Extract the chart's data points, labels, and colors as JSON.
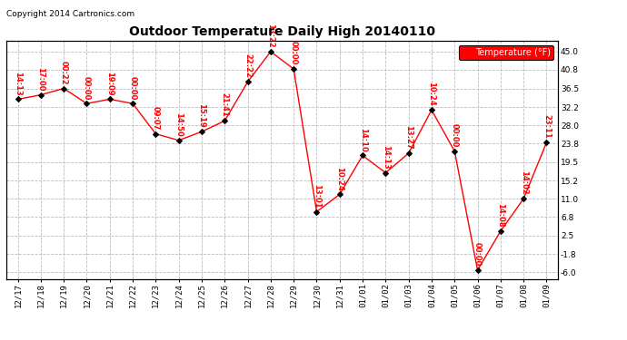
{
  "title": "Outdoor Temperature Daily High 20140110",
  "copyright": "Copyright 2014 Cartronics.com",
  "legend_label": "Temperature (°F)",
  "x_labels": [
    "12/17",
    "12/18",
    "12/19",
    "12/20",
    "12/21",
    "12/22",
    "12/23",
    "12/24",
    "12/25",
    "12/26",
    "12/27",
    "12/28",
    "12/29",
    "12/30",
    "12/31",
    "01/01",
    "01/02",
    "01/03",
    "01/04",
    "01/05",
    "01/06",
    "01/07",
    "01/08",
    "01/09"
  ],
  "temperatures": [
    34.0,
    35.0,
    36.5,
    33.0,
    34.0,
    33.0,
    26.0,
    24.5,
    26.5,
    29.0,
    38.0,
    45.0,
    41.0,
    8.0,
    12.0,
    21.0,
    17.0,
    21.5,
    31.5,
    22.0,
    -5.5,
    3.5,
    11.0,
    24.0
  ],
  "time_labels": [
    "14:13",
    "17:00",
    "00:22",
    "00:00",
    "19:09",
    "00:00",
    "09:07",
    "14:50",
    "15:19",
    "21:41",
    "22:22",
    "13:22",
    "00:00",
    "13:01",
    "10:24",
    "14:10",
    "14:13",
    "13:27",
    "10:24",
    "00:00",
    "00:00",
    "14:08",
    "14:02",
    "23:11"
  ],
  "y_ticks": [
    -6.0,
    -1.8,
    2.5,
    6.8,
    11.0,
    15.2,
    19.5,
    23.8,
    28.0,
    32.2,
    36.5,
    40.8,
    45.0
  ],
  "ylim": [
    -7.5,
    47.5
  ],
  "line_color": "red",
  "marker_color": "black",
  "bg_color": "white",
  "grid_color": "#bbbbbb",
  "title_color": "black",
  "label_color": "red",
  "copyright_color": "black",
  "legend_bg": "red",
  "legend_text_color": "white",
  "title_fontsize": 10,
  "tick_fontsize": 6.5,
  "annot_fontsize": 6.0,
  "copyright_fontsize": 6.5
}
